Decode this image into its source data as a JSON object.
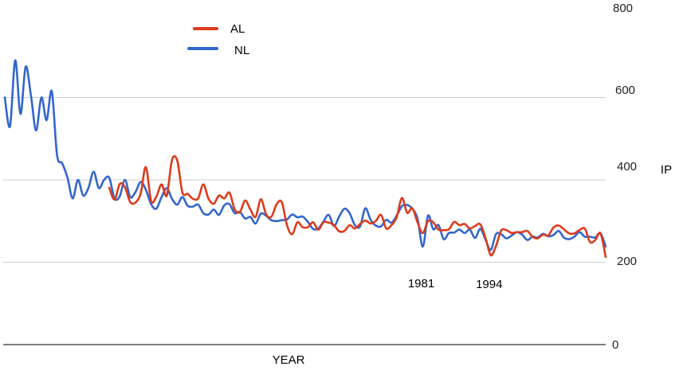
{
  "chart_data": {
    "type": "line",
    "title": "",
    "xlabel": "YEAR",
    "ylabel": "IP",
    "ylim": [
      0,
      800
    ],
    "yticks": [
      0,
      200,
      400,
      600,
      800
    ],
    "xlim": [
      1901,
      2016
    ],
    "grid": true,
    "legend_position": "top-left",
    "series": [
      {
        "name": "AL",
        "color": "#dd3b1c",
        "points": [
          [
            1921,
            381
          ],
          [
            1922,
            352
          ],
          [
            1923,
            390
          ],
          [
            1924,
            382
          ],
          [
            1925,
            346
          ],
          [
            1926,
            345
          ],
          [
            1927,
            367
          ],
          [
            1928,
            431
          ],
          [
            1929,
            349
          ],
          [
            1930,
            359
          ],
          [
            1931,
            389
          ],
          [
            1932,
            362
          ],
          [
            1933,
            448
          ],
          [
            1934,
            447
          ],
          [
            1935,
            369
          ],
          [
            1936,
            366
          ],
          [
            1937,
            354
          ],
          [
            1938,
            355
          ],
          [
            1939,
            389
          ],
          [
            1940,
            354
          ],
          [
            1941,
            342
          ],
          [
            1942,
            362
          ],
          [
            1943,
            355
          ],
          [
            1944,
            369
          ],
          [
            1945,
            328
          ],
          [
            1946,
            322
          ],
          [
            1947,
            350
          ],
          [
            1948,
            328
          ],
          [
            1949,
            310
          ],
          [
            1950,
            353
          ],
          [
            1951,
            317
          ],
          [
            1952,
            310
          ],
          [
            1953,
            340
          ],
          [
            1954,
            346
          ],
          [
            1955,
            290
          ],
          [
            1956,
            268
          ],
          [
            1957,
            297
          ],
          [
            1958,
            285
          ],
          [
            1959,
            285
          ],
          [
            1960,
            297
          ],
          [
            1961,
            279
          ],
          [
            1962,
            297
          ],
          [
            1963,
            296
          ],
          [
            1964,
            290
          ],
          [
            1965,
            275
          ],
          [
            1966,
            276
          ],
          [
            1967,
            290
          ],
          [
            1968,
            282
          ],
          [
            1969,
            293
          ],
          [
            1970,
            301
          ],
          [
            1971,
            294
          ],
          [
            1972,
            300
          ],
          [
            1973,
            315
          ],
          [
            1974,
            282
          ],
          [
            1975,
            290
          ],
          [
            1976,
            309
          ],
          [
            1977,
            356
          ],
          [
            1978,
            320
          ],
          [
            1979,
            331
          ],
          [
            1980,
            296
          ],
          [
            1981,
            271
          ],
          [
            1982,
            300
          ],
          [
            1983,
            297
          ],
          [
            1984,
            279
          ],
          [
            1985,
            278
          ],
          [
            1986,
            280
          ],
          [
            1987,
            298
          ],
          [
            1988,
            290
          ],
          [
            1989,
            293
          ],
          [
            1990,
            282
          ],
          [
            1991,
            288
          ],
          [
            1992,
            292
          ],
          [
            1993,
            259
          ],
          [
            1994,
            217
          ],
          [
            1995,
            239
          ],
          [
            1996,
            277
          ],
          [
            1997,
            278
          ],
          [
            1998,
            271
          ],
          [
            1999,
            273
          ],
          [
            2000,
            273
          ],
          [
            2001,
            276
          ],
          [
            2002,
            262
          ],
          [
            2003,
            258
          ],
          [
            2004,
            267
          ],
          [
            2005,
            265
          ],
          [
            2006,
            284
          ],
          [
            2007,
            289
          ],
          [
            2008,
            280
          ],
          [
            2009,
            270
          ],
          [
            2010,
            270
          ],
          [
            2011,
            278
          ],
          [
            2012,
            282
          ],
          [
            2013,
            249
          ],
          [
            2014,
            254
          ],
          [
            2015,
            270
          ],
          [
            2016,
            213
          ]
        ]
      },
      {
        "name": "NL",
        "color": "#3366cc",
        "points": [
          [
            1901,
            600
          ],
          [
            1902,
            530
          ],
          [
            1903,
            690
          ],
          [
            1904,
            560
          ],
          [
            1905,
            675
          ],
          [
            1906,
            605
          ],
          [
            1907,
            520
          ],
          [
            1908,
            600
          ],
          [
            1909,
            545
          ],
          [
            1910,
            615
          ],
          [
            1911,
            460
          ],
          [
            1912,
            440
          ],
          [
            1913,
            405
          ],
          [
            1914,
            355
          ],
          [
            1915,
            400
          ],
          [
            1916,
            362
          ],
          [
            1917,
            380
          ],
          [
            1918,
            420
          ],
          [
            1919,
            380
          ],
          [
            1920,
            400
          ],
          [
            1921,
            405
          ],
          [
            1922,
            355
          ],
          [
            1923,
            360
          ],
          [
            1924,
            400
          ],
          [
            1925,
            358
          ],
          [
            1926,
            370
          ],
          [
            1927,
            395
          ],
          [
            1928,
            376
          ],
          [
            1929,
            341
          ],
          [
            1930,
            330
          ],
          [
            1931,
            358
          ],
          [
            1932,
            380
          ],
          [
            1933,
            354
          ],
          [
            1934,
            340
          ],
          [
            1935,
            358
          ],
          [
            1936,
            337
          ],
          [
            1937,
            335
          ],
          [
            1938,
            340
          ],
          [
            1939,
            319
          ],
          [
            1940,
            316
          ],
          [
            1941,
            328
          ],
          [
            1942,
            315
          ],
          [
            1943,
            338
          ],
          [
            1944,
            341
          ],
          [
            1945,
            319
          ],
          [
            1946,
            322
          ],
          [
            1947,
            306
          ],
          [
            1948,
            310
          ],
          [
            1949,
            294
          ],
          [
            1950,
            318
          ],
          [
            1951,
            313
          ],
          [
            1952,
            302
          ],
          [
            1953,
            300
          ],
          [
            1954,
            302
          ],
          [
            1955,
            304
          ],
          [
            1956,
            316
          ],
          [
            1957,
            309
          ],
          [
            1958,
            311
          ],
          [
            1959,
            298
          ],
          [
            1960,
            281
          ],
          [
            1961,
            282
          ],
          [
            1962,
            299
          ],
          [
            1963,
            315
          ],
          [
            1964,
            288
          ],
          [
            1965,
            311
          ],
          [
            1966,
            330
          ],
          [
            1967,
            319
          ],
          [
            1968,
            290
          ],
          [
            1969,
            287
          ],
          [
            1970,
            331
          ],
          [
            1971,
            303
          ],
          [
            1972,
            289
          ],
          [
            1973,
            287
          ],
          [
            1974,
            303
          ],
          [
            1975,
            296
          ],
          [
            1976,
            313
          ],
          [
            1977,
            336
          ],
          [
            1978,
            339
          ],
          [
            1979,
            330
          ],
          [
            1980,
            305
          ],
          [
            1981,
            238
          ],
          [
            1982,
            313
          ],
          [
            1983,
            280
          ],
          [
            1984,
            290
          ],
          [
            1985,
            256
          ],
          [
            1986,
            271
          ],
          [
            1987,
            272
          ],
          [
            1988,
            279
          ],
          [
            1989,
            271
          ],
          [
            1990,
            279
          ],
          [
            1991,
            259
          ],
          [
            1992,
            281
          ],
          [
            1993,
            255
          ],
          [
            1994,
            230
          ],
          [
            1995,
            268
          ],
          [
            1996,
            268
          ],
          [
            1997,
            258
          ],
          [
            1998,
            265
          ],
          [
            1999,
            273
          ],
          [
            2000,
            267
          ],
          [
            2001,
            254
          ],
          [
            2002,
            262
          ],
          [
            2003,
            260
          ],
          [
            2004,
            269
          ],
          [
            2005,
            263
          ],
          [
            2006,
            266
          ],
          [
            2007,
            276
          ],
          [
            2008,
            260
          ],
          [
            2009,
            256
          ],
          [
            2010,
            262
          ],
          [
            2011,
            273
          ],
          [
            2012,
            262
          ],
          [
            2013,
            262
          ],
          [
            2014,
            260
          ],
          [
            2015,
            271
          ],
          [
            2016,
            238
          ]
        ]
      }
    ],
    "annotations": [
      {
        "text": "1981",
        "x": 1981
      },
      {
        "text": "1994",
        "x": 1994
      }
    ]
  }
}
